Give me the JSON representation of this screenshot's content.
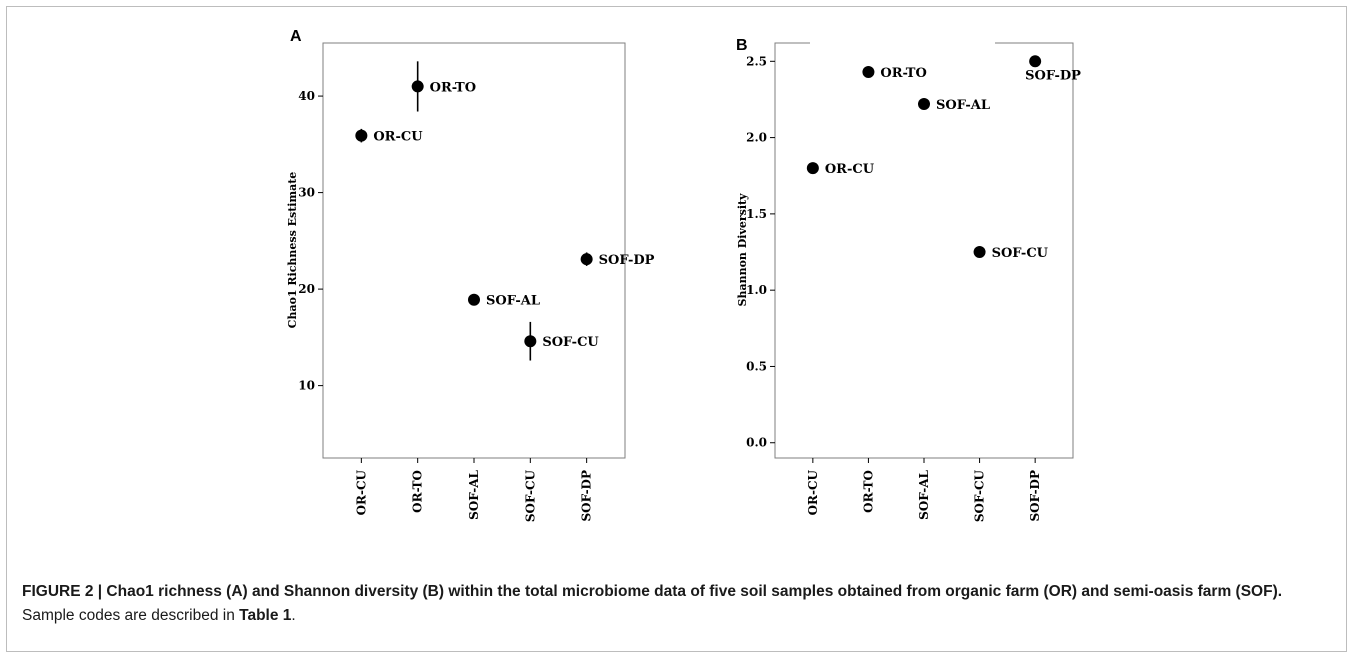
{
  "caption": {
    "lead": "FIGURE 2 | Chao1 richness (A) and Shannon diversity (B) within the total microbiome data of five soil samples obtained from organic farm (OR) and semi-oasis farm (SOF).",
    "rest_pre": " Sample codes are described in ",
    "table_ref": "Table 1",
    "rest_post": "."
  },
  "chart_data": [
    {
      "panel": "A",
      "type": "scatter",
      "ylabel": "Chao1 Richness Estimate",
      "categories": [
        "OR-CU",
        "OR-TO",
        "SOF-AL",
        "SOF-CU",
        "SOF-DP"
      ],
      "yticks": [
        10,
        20,
        30,
        40
      ],
      "ylim": [
        2.5,
        45.5
      ],
      "series": [
        {
          "values": [
            35.9,
            41.0,
            18.9,
            14.6,
            23.1
          ],
          "error_low": [
            35.2,
            38.4,
            18.9,
            12.6,
            22.4
          ],
          "error_high": [
            36.6,
            43.6,
            18.9,
            16.6,
            23.8
          ]
        }
      ],
      "point_labels": [
        "OR-CU",
        "OR-TO",
        "SOF-AL",
        "SOF-CU",
        "SOF-DP"
      ],
      "grid": false
    },
    {
      "panel": "B",
      "type": "scatter",
      "ylabel": "Shannon Diversity",
      "categories": [
        "OR-CU",
        "OR-TO",
        "SOF-AL",
        "SOF-CU",
        "SOF-DP"
      ],
      "yticks": [
        "0.0",
        "0.5",
        "1.0",
        "1.5",
        "2.0",
        "2.5"
      ],
      "ylim": [
        -0.1,
        2.62
      ],
      "series": [
        {
          "values": [
            1.8,
            2.43,
            2.22,
            1.25,
            2.5
          ]
        }
      ],
      "point_labels": [
        "OR-CU",
        "OR-TO",
        "SOF-AL",
        "SOF-CU",
        "SOF-DP"
      ],
      "grid": false
    }
  ]
}
